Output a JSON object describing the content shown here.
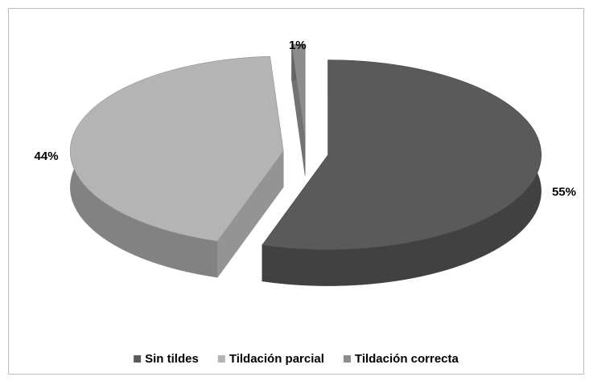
{
  "chart_data": {
    "type": "pie",
    "categories": [
      "Sin tildes",
      "Tildación parcial",
      "Tildación correcta"
    ],
    "values": [
      55,
      44,
      1
    ],
    "value_labels": [
      "55%",
      "44%",
      "1%"
    ],
    "colors": [
      "#5a5a5a",
      "#b4b4b4",
      "#8c8c8c"
    ],
    "legend": "bottom"
  }
}
